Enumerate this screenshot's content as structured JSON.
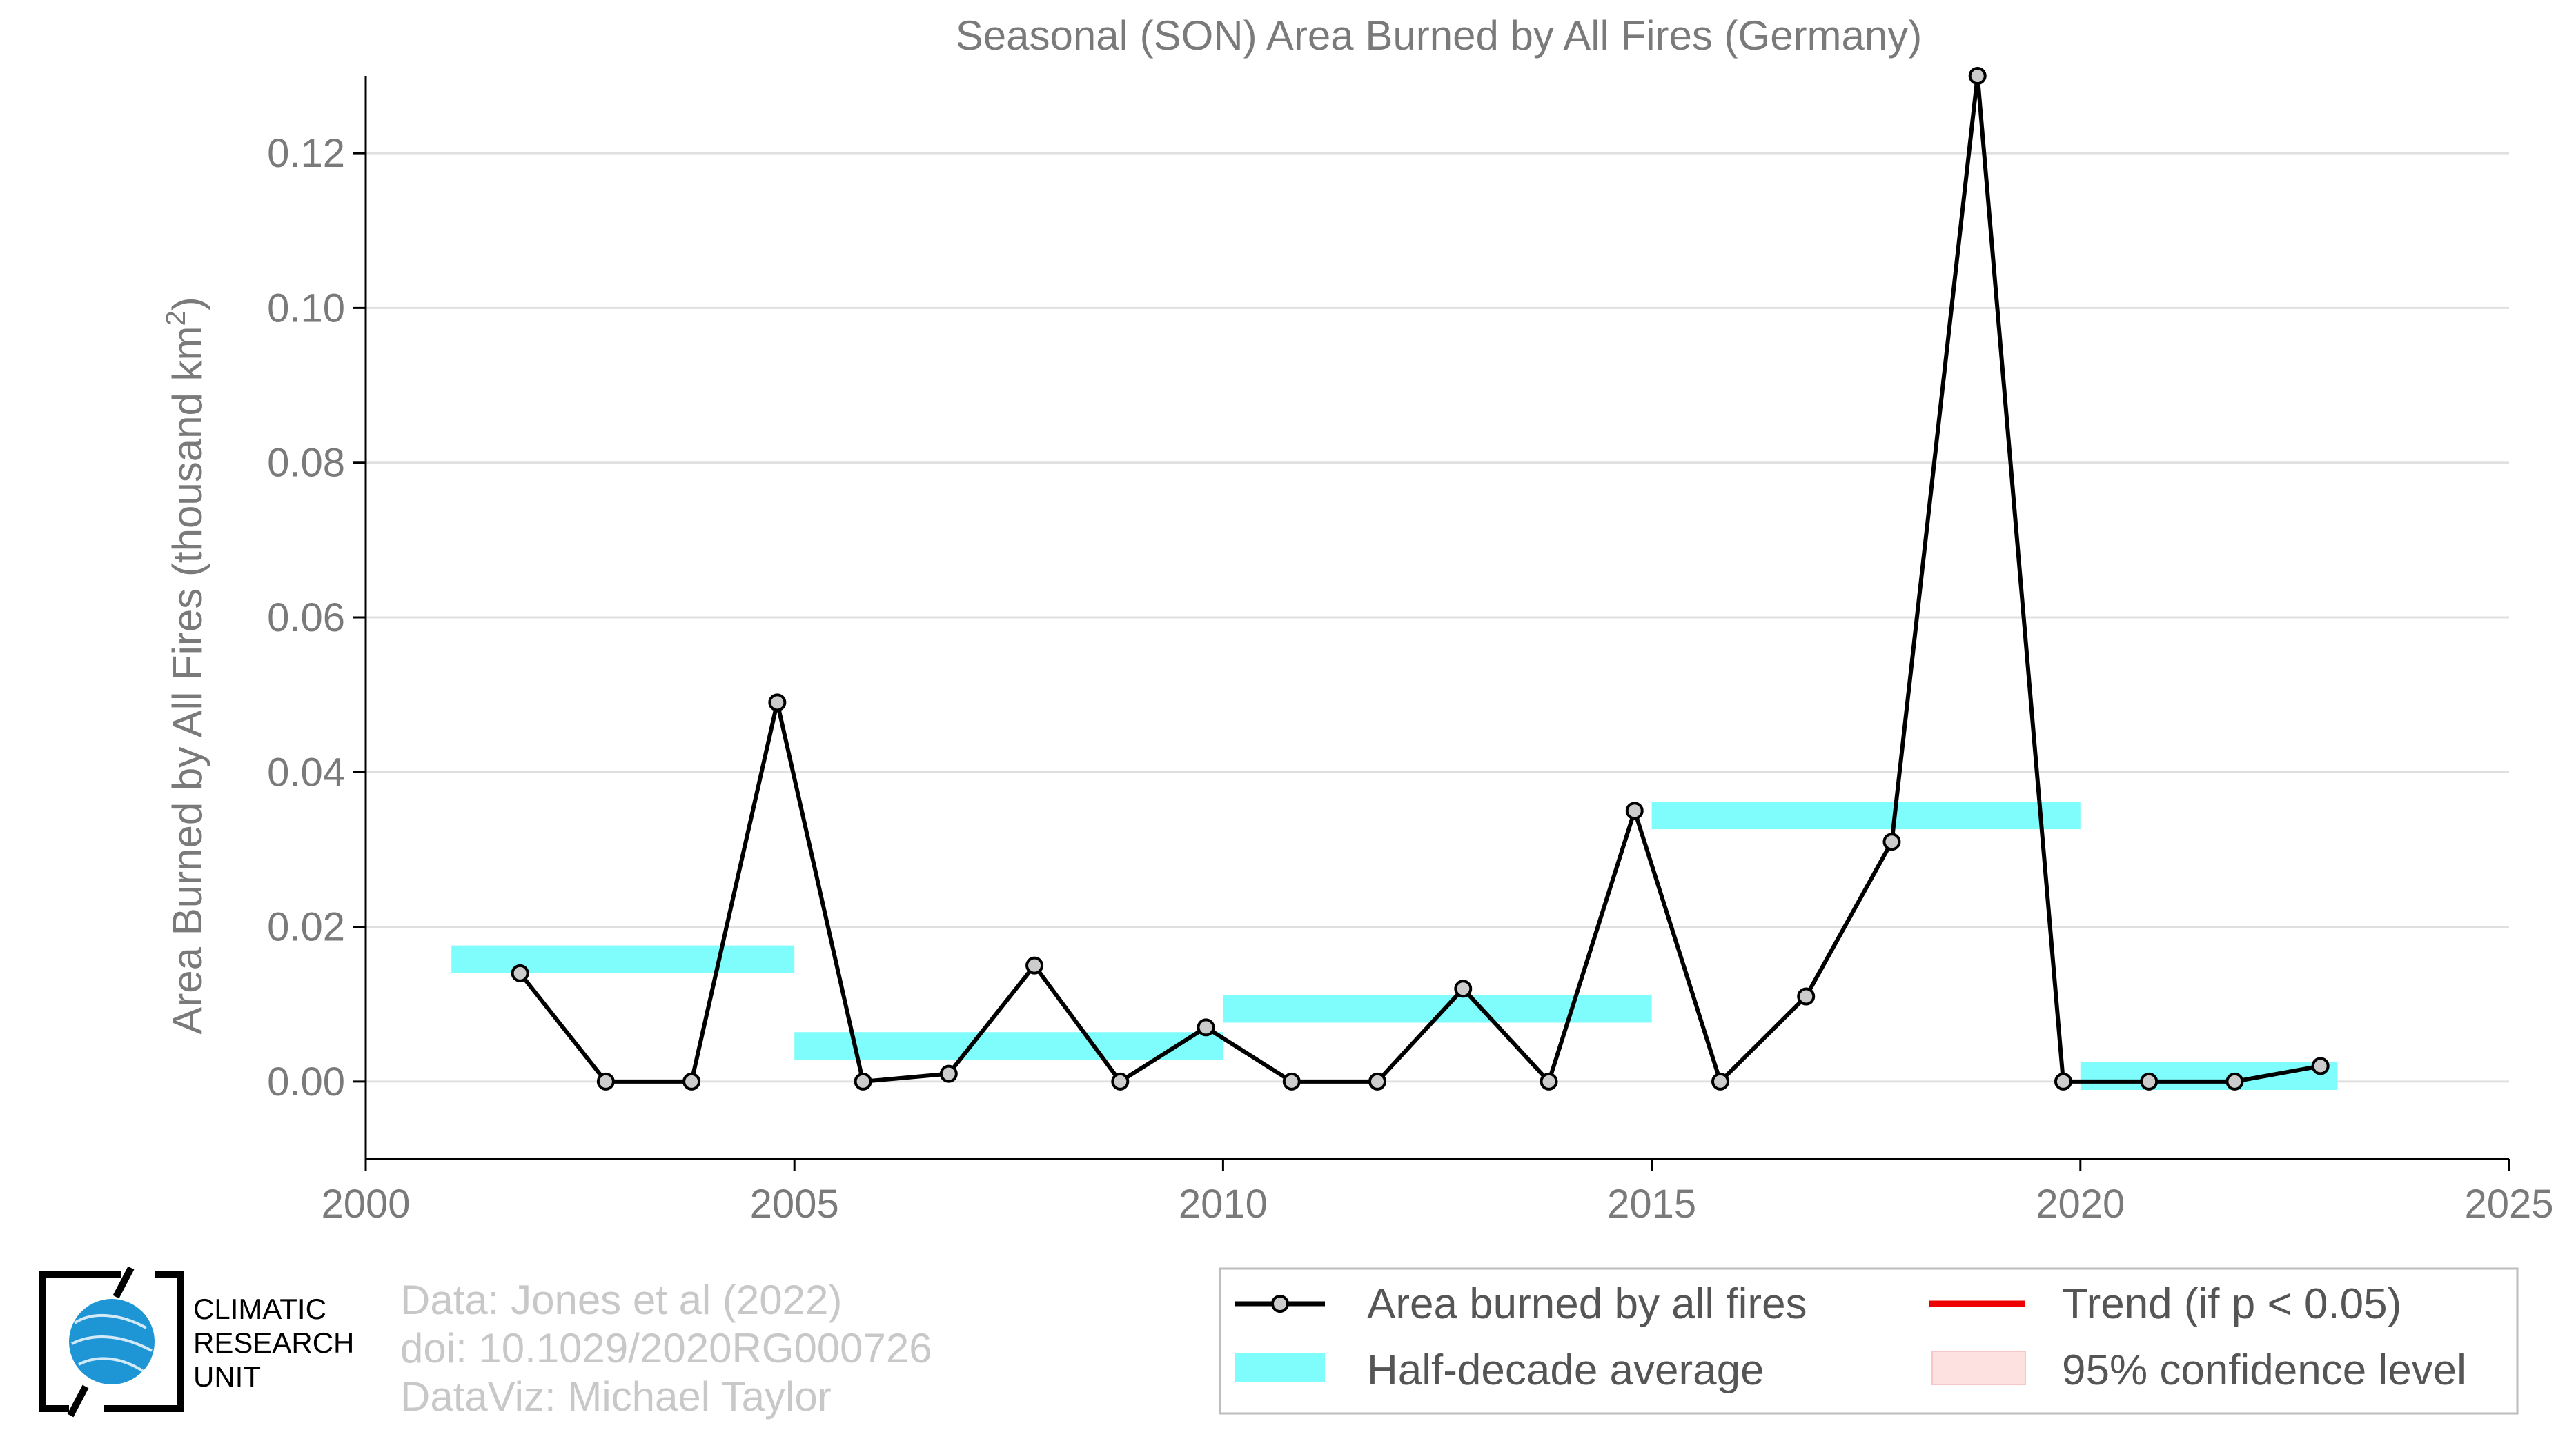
{
  "chart_data": {
    "type": "line",
    "title": "Seasonal (SON) Area Burned by All Fires (Germany)",
    "ylabel": "Area Burned by All Fires (thousand km",
    "ylabel_superscript": "2",
    "ylabel_suffix": ")",
    "xlim": [
      2000,
      2025
    ],
    "ylim": [
      -0.01,
      0.13
    ],
    "xticks": [
      2000,
      2005,
      2010,
      2015,
      2020,
      2025
    ],
    "xtick_labels": [
      "2000",
      "2005",
      "2010",
      "2015",
      "2020",
      "2025"
    ],
    "yticks": [
      0.0,
      0.02,
      0.04,
      0.06,
      0.08,
      0.1,
      0.12
    ],
    "ytick_labels": [
      "0.00",
      "0.02",
      "0.04",
      "0.06",
      "0.08",
      "0.10",
      "0.12"
    ],
    "grid": "horizontal",
    "series": [
      {
        "name": "Area burned by all fires",
        "color": "#000000",
        "marker_fill": "#cccccc",
        "x": [
          2001.8,
          2002.8,
          2003.8,
          2004.8,
          2005.8,
          2006.8,
          2007.8,
          2008.8,
          2009.8,
          2010.8,
          2011.8,
          2012.8,
          2013.8,
          2014.8,
          2015.8,
          2016.8,
          2017.8,
          2018.8,
          2019.8,
          2020.8,
          2021.8,
          2022.8
        ],
        "values": [
          0.014,
          0.0,
          0.0,
          0.049,
          0.0,
          0.001,
          0.015,
          0.0,
          0.007,
          0.0,
          0.0,
          0.012,
          0.0,
          0.035,
          0.0,
          0.011,
          0.031,
          0.13,
          0.0,
          0.0,
          0.0,
          0.002
        ]
      }
    ],
    "half_decade_average": {
      "name": "Half-decade average",
      "color": "#7ffcfc",
      "segments": [
        {
          "x0": 2001,
          "x1": 2005,
          "value": 0.0158
        },
        {
          "x0": 2005,
          "x1": 2010,
          "value": 0.0046
        },
        {
          "x0": 2010,
          "x1": 2015,
          "value": 0.0094
        },
        {
          "x0": 2015,
          "x1": 2020,
          "value": 0.0344
        },
        {
          "x0": 2020,
          "x1": 2023,
          "value": 0.0007
        }
      ]
    },
    "legend": {
      "placement": "bottom-right",
      "items": [
        {
          "label": "Area burned by all fires",
          "kind": "line-marker",
          "color": "#000000"
        },
        {
          "label": "Trend (if p < 0.05)",
          "kind": "line",
          "color": "#ee0000"
        },
        {
          "label": "Half-decade average",
          "kind": "band",
          "color": "#7ffcfc"
        },
        {
          "label": "95% confidence level",
          "kind": "band",
          "color": "#fde0e0"
        }
      ]
    }
  },
  "credits": {
    "line1": "Data: Jones et al (2022)",
    "line2": "doi: 10.1029/2020RG000726",
    "line3": "DataViz: Michael Taylor"
  },
  "logo": {
    "line1": "CLIMATIC",
    "line2": "RESEARCH",
    "line3": "UNIT"
  }
}
